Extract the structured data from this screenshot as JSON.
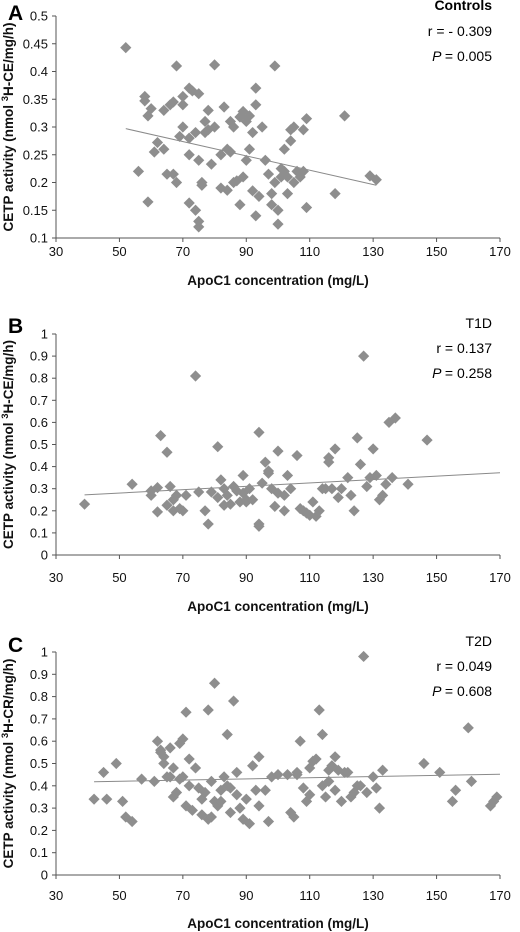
{
  "figure": {
    "colors": {
      "marker": "#8e8e8e",
      "trendline": "#8a8a8a",
      "axis": "#555555",
      "text": "#111111"
    }
  },
  "chart_data": [
    {
      "type": "scatter",
      "panel": "A",
      "group_label": "Controls",
      "r_text": "r = - 0.309",
      "p_label": "P",
      "p_text": "= 0.005",
      "xlabel": "ApoC1 concentration (mg/L)",
      "ylabel": "CETP activity (nmol 3H-CE/mg/h)",
      "ylabel_parts": [
        "CETP activity (nmol ",
        "3",
        "H-CE/mg/h)"
      ],
      "xlim": [
        30,
        170
      ],
      "ylim": [
        0.1,
        0.5
      ],
      "xticks": [
        "30",
        "50",
        "70",
        "90",
        "110",
        "130",
        "150",
        "170"
      ],
      "yticks": [
        "0.1",
        "0.15",
        "0.2",
        "0.25",
        "0.3",
        "0.35",
        "0.4",
        "0.45",
        "0.5"
      ],
      "trendline": {
        "x": [
          52,
          131
        ],
        "y": [
          0.297,
          0.195
        ]
      },
      "points": [
        [
          52,
          0.443
        ],
        [
          56,
          0.22
        ],
        [
          58,
          0.355
        ],
        [
          58,
          0.347
        ],
        [
          59,
          0.32
        ],
        [
          60,
          0.333
        ],
        [
          59,
          0.165
        ],
        [
          61,
          0.255
        ],
        [
          62,
          0.272
        ],
        [
          64,
          0.26
        ],
        [
          64,
          0.33
        ],
        [
          65,
          0.215
        ],
        [
          66,
          0.34
        ],
        [
          67,
          0.345
        ],
        [
          67,
          0.215
        ],
        [
          68,
          0.41
        ],
        [
          68,
          0.2
        ],
        [
          70,
          0.34
        ],
        [
          70,
          0.3
        ],
        [
          69,
          0.283
        ],
        [
          70,
          0.355
        ],
        [
          72,
          0.37
        ],
        [
          72,
          0.28
        ],
        [
          72,
          0.163
        ],
        [
          72,
          0.25
        ],
        [
          73,
          0.365
        ],
        [
          74,
          0.29
        ],
        [
          74,
          0.15
        ],
        [
          75,
          0.12
        ],
        [
          75,
          0.13
        ],
        [
          75,
          0.36
        ],
        [
          75,
          0.24
        ],
        [
          76,
          0.195
        ],
        [
          76,
          0.2
        ],
        [
          77,
          0.31
        ],
        [
          77,
          0.29
        ],
        [
          78,
          0.33
        ],
        [
          78,
          0.295
        ],
        [
          79,
          0.233
        ],
        [
          80,
          0.412
        ],
        [
          80,
          0.3
        ],
        [
          82,
          0.25
        ],
        [
          82,
          0.19
        ],
        [
          83,
          0.336
        ],
        [
          84,
          0.26
        ],
        [
          84,
          0.186
        ],
        [
          85,
          0.31
        ],
        [
          85,
          0.255
        ],
        [
          86,
          0.3
        ],
        [
          86,
          0.2
        ],
        [
          87,
          0.203
        ],
        [
          88,
          0.318
        ],
        [
          88,
          0.16
        ],
        [
          89,
          0.21
        ],
        [
          89,
          0.328
        ],
        [
          90,
          0.31
        ],
        [
          90,
          0.24
        ],
        [
          91,
          0.32
        ],
        [
          91,
          0.26
        ],
        [
          92,
          0.29
        ],
        [
          92,
          0.185
        ],
        [
          93,
          0.37
        ],
        [
          93,
          0.34
        ],
        [
          93,
          0.14
        ],
        [
          94,
          0.175
        ],
        [
          95,
          0.3
        ],
        [
          96,
          0.24
        ],
        [
          97,
          0.215
        ],
        [
          98,
          0.18
        ],
        [
          98,
          0.16
        ],
        [
          99,
          0.41
        ],
        [
          99,
          0.2
        ],
        [
          100,
          0.15
        ],
        [
          100,
          0.125
        ],
        [
          101,
          0.225
        ],
        [
          101,
          0.21
        ],
        [
          102,
          0.26
        ],
        [
          102,
          0.22
        ],
        [
          103,
          0.18
        ],
        [
          103,
          0.21
        ],
        [
          104,
          0.295
        ],
        [
          104,
          0.275
        ],
        [
          105,
          0.3
        ],
        [
          105,
          0.2
        ],
        [
          106,
          0.22
        ],
        [
          107,
          0.21
        ],
        [
          108,
          0.295
        ],
        [
          108,
          0.22
        ],
        [
          109,
          0.155
        ],
        [
          109,
          0.315
        ],
        [
          118,
          0.18
        ],
        [
          121,
          0.32
        ],
        [
          129,
          0.212
        ],
        [
          131,
          0.205
        ]
      ]
    },
    {
      "type": "scatter",
      "panel": "B",
      "group_label": "T1D",
      "r_text": "r = 0.137",
      "p_label": "P",
      "p_text": "= 0.258",
      "xlabel": "ApoC1 concentration (mg/L)",
      "ylabel": "CETP activity (nmol 3H-CE/mg/h)",
      "ylabel_parts": [
        "CETP activity (nmol ",
        "3",
        "H-CE/mg/h)"
      ],
      "xlim": [
        30,
        170
      ],
      "ylim": [
        0,
        1
      ],
      "xticks": [
        "30",
        "50",
        "70",
        "90",
        "110",
        "130",
        "150",
        "170"
      ],
      "yticks": [
        "0",
        "0.1",
        "0.2",
        "0.3",
        "0.4",
        "0.5",
        "0.6",
        "0.7",
        "0.8",
        "0.9",
        "1"
      ],
      "trendline": {
        "x": [
          39,
          170
        ],
        "y": [
          0.272,
          0.372
        ]
      },
      "points": [
        [
          39,
          0.23
        ],
        [
          54,
          0.32
        ],
        [
          60,
          0.29
        ],
        [
          60,
          0.27
        ],
        [
          62,
          0.305
        ],
        [
          62,
          0.195
        ],
        [
          63,
          0.54
        ],
        [
          65,
          0.225
        ],
        [
          65,
          0.465
        ],
        [
          66,
          0.31
        ],
        [
          67,
          0.25
        ],
        [
          67,
          0.2
        ],
        [
          68,
          0.27
        ],
        [
          69,
          0.21
        ],
        [
          70,
          0.2
        ],
        [
          71,
          0.27
        ],
        [
          74,
          0.81
        ],
        [
          75,
          0.285
        ],
        [
          77,
          0.2
        ],
        [
          78,
          0.14
        ],
        [
          79,
          0.285
        ],
        [
          81,
          0.26
        ],
        [
          81,
          0.49
        ],
        [
          82,
          0.34
        ],
        [
          83,
          0.3
        ],
        [
          83,
          0.225
        ],
        [
          84,
          0.27
        ],
        [
          85,
          0.23
        ],
        [
          86,
          0.31
        ],
        [
          87,
          0.29
        ],
        [
          88,
          0.24
        ],
        [
          89,
          0.28
        ],
        [
          89,
          0.36
        ],
        [
          90,
          0.24
        ],
        [
          90,
          0.25
        ],
        [
          91,
          0.3
        ],
        [
          92,
          0.25
        ],
        [
          94,
          0.14
        ],
        [
          94,
          0.13
        ],
        [
          94,
          0.555
        ],
        [
          95,
          0.325
        ],
        [
          96,
          0.42
        ],
        [
          97,
          0.38
        ],
        [
          97,
          0.37
        ],
        [
          98,
          0.3
        ],
        [
          99,
          0.22
        ],
        [
          100,
          0.47
        ],
        [
          100,
          0.28
        ],
        [
          102,
          0.2
        ],
        [
          102,
          0.27
        ],
        [
          103,
          0.36
        ],
        [
          104,
          0.3
        ],
        [
          106,
          0.45
        ],
        [
          107,
          0.21
        ],
        [
          108,
          0.2
        ],
        [
          109,
          0.19
        ],
        [
          110,
          0.18
        ],
        [
          111,
          0.24
        ],
        [
          112,
          0.175
        ],
        [
          113,
          0.2
        ],
        [
          114,
          0.3
        ],
        [
          115,
          0.3
        ],
        [
          116,
          0.42
        ],
        [
          116,
          0.44
        ],
        [
          117,
          0.3
        ],
        [
          118,
          0.48
        ],
        [
          119,
          0.26
        ],
        [
          120,
          0.3
        ],
        [
          122,
          0.35
        ],
        [
          123,
          0.27
        ],
        [
          124,
          0.2
        ],
        [
          125,
          0.53
        ],
        [
          126,
          0.41
        ],
        [
          127,
          0.9
        ],
        [
          128,
          0.31
        ],
        [
          129,
          0.35
        ],
        [
          130,
          0.48
        ],
        [
          131,
          0.36
        ],
        [
          132,
          0.25
        ],
        [
          133,
          0.27
        ],
        [
          134,
          0.32
        ],
        [
          135,
          0.6
        ],
        [
          136,
          0.35
        ],
        [
          137,
          0.62
        ],
        [
          141,
          0.32
        ],
        [
          147,
          0.52
        ]
      ]
    },
    {
      "type": "scatter",
      "panel": "C",
      "group_label": "T2D",
      "r_text": "r = 0.049",
      "p_label": "P",
      "p_text": "= 0.608",
      "xlabel": "ApoC1 concentration (mg/L)",
      "ylabel": "CETP activity (nmol 3H-CR/mg/h)",
      "ylabel_parts": [
        "CETP activity (nmol ",
        "3",
        "H-CR/mg/h)"
      ],
      "xlim": [
        30,
        170
      ],
      "ylim": [
        0,
        1
      ],
      "xticks": [
        "30",
        "50",
        "70",
        "90",
        "110",
        "130",
        "150",
        "170"
      ],
      "yticks": [
        "0",
        "0.1",
        "0.2",
        "0.3",
        "0.4",
        "0.5",
        "0.6",
        "0.7",
        "0.8",
        "0.9",
        "1"
      ],
      "trendline": {
        "x": [
          42,
          170
        ],
        "y": [
          0.418,
          0.452
        ]
      },
      "points": [
        [
          42,
          0.34
        ],
        [
          45,
          0.46
        ],
        [
          46,
          0.34
        ],
        [
          49,
          0.5
        ],
        [
          51,
          0.33
        ],
        [
          52,
          0.26
        ],
        [
          54,
          0.24
        ],
        [
          57,
          0.43
        ],
        [
          61,
          0.42
        ],
        [
          62,
          0.6
        ],
        [
          63,
          0.55
        ],
        [
          63,
          0.56
        ],
        [
          64,
          0.5
        ],
        [
          64,
          0.53
        ],
        [
          65,
          0.44
        ],
        [
          66,
          0.57
        ],
        [
          66,
          0.44
        ],
        [
          67,
          0.35
        ],
        [
          67,
          0.48
        ],
        [
          68,
          0.37
        ],
        [
          69,
          0.59
        ],
        [
          69,
          0.43
        ],
        [
          70,
          0.61
        ],
        [
          70,
          0.44
        ],
        [
          71,
          0.73
        ],
        [
          71,
          0.31
        ],
        [
          72,
          0.4
        ],
        [
          72,
          0.52
        ],
        [
          73,
          0.29
        ],
        [
          74,
          0.48
        ],
        [
          75,
          0.39
        ],
        [
          76,
          0.27
        ],
        [
          76,
          0.34
        ],
        [
          77,
          0.37
        ],
        [
          78,
          0.74
        ],
        [
          78,
          0.25
        ],
        [
          79,
          0.42
        ],
        [
          79,
          0.26
        ],
        [
          80,
          0.86
        ],
        [
          80,
          0.33
        ],
        [
          81,
          0.31
        ],
        [
          82,
          0.38
        ],
        [
          82,
          0.33
        ],
        [
          83,
          0.44
        ],
        [
          84,
          0.63
        ],
        [
          84,
          0.4
        ],
        [
          85,
          0.39
        ],
        [
          85,
          0.28
        ],
        [
          86,
          0.78
        ],
        [
          87,
          0.46
        ],
        [
          87,
          0.36
        ],
        [
          88,
          0.3
        ],
        [
          89,
          0.25
        ],
        [
          90,
          0.34
        ],
        [
          91,
          0.23
        ],
        [
          92,
          0.49
        ],
        [
          93,
          0.38
        ],
        [
          94,
          0.53
        ],
        [
          94,
          0.31
        ],
        [
          96,
          0.38
        ],
        [
          97,
          0.24
        ],
        [
          98,
          0.44
        ],
        [
          100,
          0.45
        ],
        [
          103,
          0.45
        ],
        [
          104,
          0.28
        ],
        [
          105,
          0.26
        ],
        [
          106,
          0.45
        ],
        [
          106,
          0.46
        ],
        [
          107,
          0.6
        ],
        [
          108,
          0.39
        ],
        [
          109,
          0.33
        ],
        [
          110,
          0.48
        ],
        [
          110,
          0.36
        ],
        [
          111,
          0.51
        ],
        [
          112,
          0.52
        ],
        [
          113,
          0.74
        ],
        [
          114,
          0.4
        ],
        [
          114,
          0.63
        ],
        [
          115,
          0.35
        ],
        [
          116,
          0.47
        ],
        [
          116,
          0.42
        ],
        [
          117,
          0.49
        ],
        [
          118,
          0.53
        ],
        [
          118,
          0.38
        ],
        [
          119,
          0.47
        ],
        [
          120,
          0.33
        ],
        [
          121,
          0.46
        ],
        [
          122,
          0.46
        ],
        [
          123,
          0.35
        ],
        [
          124,
          0.37
        ],
        [
          125,
          0.4
        ],
        [
          126,
          0.4
        ],
        [
          127,
          0.98
        ],
        [
          128,
          0.37
        ],
        [
          130,
          0.44
        ],
        [
          131,
          0.39
        ],
        [
          132,
          0.3
        ],
        [
          133,
          0.47
        ],
        [
          146,
          0.5
        ],
        [
          151,
          0.46
        ],
        [
          155,
          0.33
        ],
        [
          156,
          0.38
        ],
        [
          160,
          0.66
        ],
        [
          161,
          0.42
        ],
        [
          167,
          0.31
        ],
        [
          168,
          0.33
        ],
        [
          169,
          0.35
        ]
      ]
    }
  ]
}
